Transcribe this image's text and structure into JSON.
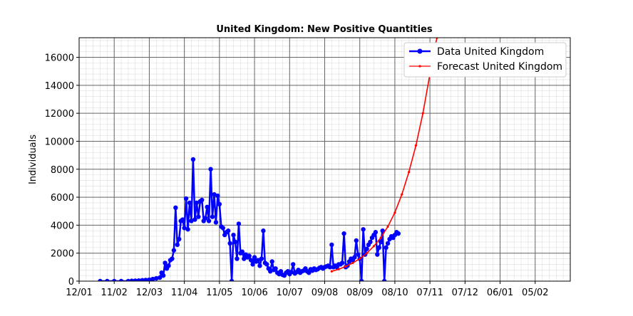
{
  "chart_data": {
    "type": "line",
    "title": "United Kingdom: New Positive Quantities",
    "xlabel": "",
    "ylabel": "Individuals",
    "ylim": [
      0,
      17400
    ],
    "yticks": [
      0,
      2000,
      4000,
      6000,
      8000,
      10000,
      12000,
      14000,
      16000
    ],
    "x_tick_labels": [
      "12/01",
      "11/02",
      "12/03",
      "11/04",
      "11/05",
      "10/06",
      "10/07",
      "09/08",
      "08/09",
      "08/10",
      "07/11",
      "07/12",
      "06/01",
      "05/02"
    ],
    "x_domain": [
      0,
      14
    ],
    "grid": true,
    "minor_grid": true,
    "legend_position": "upper right",
    "legend": [
      "Data United Kingdom",
      "Forecast United Kingdom"
    ],
    "colors": {
      "data": "#0000ff",
      "forecast": "#ff0000",
      "grid_major": "#666666",
      "grid_minor": "#dddddd"
    },
    "series": [
      {
        "name": "Data United Kingdom",
        "style": "line-dot",
        "x": [
          0.6,
          0.8,
          1.0,
          1.2,
          1.4,
          1.5,
          1.6,
          1.7,
          1.8,
          1.9,
          2.0,
          2.1,
          2.2,
          2.3,
          2.35,
          2.4,
          2.45,
          2.5,
          2.55,
          2.6,
          2.65,
          2.7,
          2.75,
          2.8,
          2.85,
          2.9,
          2.95,
          3.0,
          3.05,
          3.1,
          3.15,
          3.2,
          3.25,
          3.3,
          3.35,
          3.4,
          3.45,
          3.5,
          3.55,
          3.6,
          3.65,
          3.7,
          3.75,
          3.8,
          3.85,
          3.9,
          3.95,
          4.0,
          4.05,
          4.1,
          4.15,
          4.2,
          4.25,
          4.3,
          4.35,
          4.4,
          4.45,
          4.5,
          4.55,
          4.6,
          4.65,
          4.7,
          4.75,
          4.8,
          4.85,
          4.9,
          4.95,
          5.0,
          5.05,
          5.1,
          5.15,
          5.2,
          5.25,
          5.3,
          5.35,
          5.4,
          5.45,
          5.5,
          5.55,
          5.6,
          5.65,
          5.7,
          5.75,
          5.8,
          5.85,
          5.9,
          5.95,
          6.0,
          6.05,
          6.1,
          6.15,
          6.2,
          6.25,
          6.3,
          6.35,
          6.4,
          6.45,
          6.5,
          6.55,
          6.6,
          6.65,
          6.7,
          6.75,
          6.8,
          6.85,
          6.9,
          6.95,
          7.0,
          7.05,
          7.1,
          7.15,
          7.2,
          7.25,
          7.3,
          7.35,
          7.4,
          7.45,
          7.5,
          7.55,
          7.6,
          7.65,
          7.7,
          7.75,
          7.8,
          7.85,
          7.9,
          7.95,
          8.0,
          8.05,
          8.1,
          8.15,
          8.2,
          8.25,
          8.3,
          8.35,
          8.4,
          8.45,
          8.5,
          8.55,
          8.6,
          8.65,
          8.7,
          8.75,
          8.8,
          8.85,
          8.9,
          8.95,
          9.0,
          9.05,
          9.1
        ],
        "y": [
          0,
          0,
          0,
          0,
          0,
          20,
          30,
          40,
          60,
          80,
          100,
          150,
          200,
          250,
          600,
          400,
          1300,
          900,
          1100,
          1500,
          1600,
          2200,
          5250,
          2600,
          3000,
          4300,
          4400,
          3800,
          5900,
          3700,
          5600,
          4300,
          8700,
          4400,
          5600,
          4600,
          5700,
          5800,
          4300,
          4500,
          5300,
          4300,
          8000,
          4600,
          6200,
          4200,
          6100,
          5500,
          3900,
          3800,
          3300,
          3500,
          3600,
          2700,
          0,
          3300,
          2800,
          1600,
          4100,
          2000,
          2100,
          1600,
          1900,
          1700,
          1800,
          1500,
          1200,
          1700,
          1400,
          1500,
          1100,
          1600,
          3600,
          1300,
          1200,
          900,
          700,
          1400,
          800,
          900,
          600,
          500,
          700,
          450,
          400,
          600,
          700,
          500,
          650,
          1200,
          550,
          650,
          800,
          600,
          700,
          750,
          900,
          700,
          600,
          850,
          750,
          900,
          800,
          850,
          950,
          1000,
          900,
          1000,
          1050,
          1100,
          1000,
          2600,
          1000,
          1100,
          1000,
          1200,
          1200,
          1300,
          3400,
          1000,
          1100,
          1400,
          1600,
          1500,
          1700,
          2900,
          1900,
          1600,
          0,
          3700,
          1900,
          2300,
          2600,
          2800,
          3100,
          3300,
          3500,
          1900,
          2400,
          2800,
          3600,
          0,
          2400,
          2700,
          3000,
          3200,
          3100,
          3300,
          3500,
          3400
        ]
      },
      {
        "name": "Forecast United Kingdom",
        "style": "line-small-dot",
        "x": [
          7.2,
          7.4,
          7.6,
          7.8,
          8.0,
          8.2,
          8.4,
          8.6,
          8.8,
          9.0,
          9.2,
          9.4,
          9.6,
          9.8,
          10.0,
          10.1,
          10.2
        ],
        "y": [
          700,
          850,
          1050,
          1300,
          1600,
          2000,
          2500,
          3100,
          3900,
          4900,
          6200,
          7800,
          9700,
          12000,
          14800,
          16300,
          17400
        ]
      }
    ]
  }
}
